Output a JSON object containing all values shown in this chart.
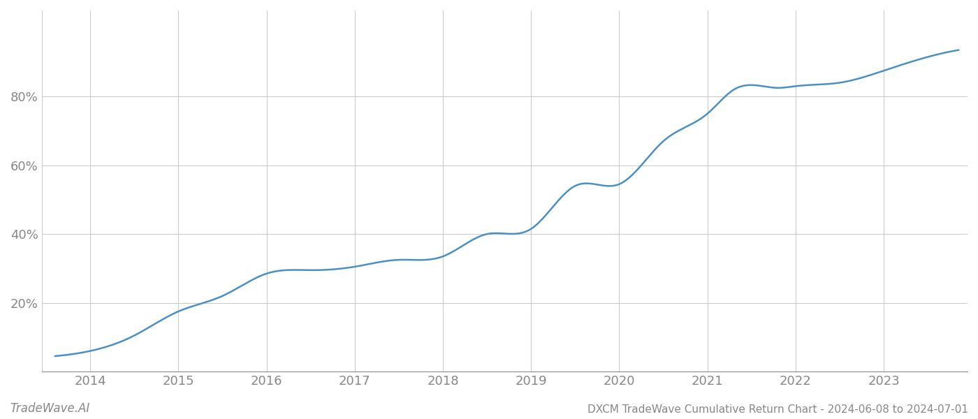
{
  "title": "DXCM TradeWave Cumulative Return Chart - 2024-06-08 to 2024-07-01",
  "watermark": "TradeWave.AI",
  "line_color": "#4a90c4",
  "background_color": "#ffffff",
  "grid_color": "#cccccc",
  "x_years": [
    2014,
    2015,
    2016,
    2017,
    2018,
    2019,
    2020,
    2021,
    2022,
    2023
  ],
  "key_x": [
    2013.6,
    2014.0,
    2014.5,
    2015.0,
    2015.5,
    2016.0,
    2016.5,
    2017.0,
    2017.5,
    2018.0,
    2018.5,
    2019.0,
    2019.5,
    2020.0,
    2020.5,
    2021.0,
    2021.3,
    2021.8,
    2022.0,
    2022.5,
    2023.0,
    2023.5,
    2023.85
  ],
  "key_y": [
    4.5,
    6.0,
    10.5,
    17.5,
    22.0,
    28.5,
    29.5,
    30.5,
    32.5,
    33.5,
    40.0,
    41.5,
    54.0,
    54.5,
    67.0,
    75.0,
    82.0,
    82.5,
    83.0,
    84.0,
    87.5,
    91.5,
    93.5
  ],
  "yticks": [
    20,
    40,
    60,
    80
  ],
  "ylim": [
    0,
    105
  ],
  "xlim": [
    2013.45,
    2023.95
  ],
  "title_fontsize": 11,
  "tick_fontsize": 13,
  "watermark_fontsize": 12,
  "line_width": 1.8
}
